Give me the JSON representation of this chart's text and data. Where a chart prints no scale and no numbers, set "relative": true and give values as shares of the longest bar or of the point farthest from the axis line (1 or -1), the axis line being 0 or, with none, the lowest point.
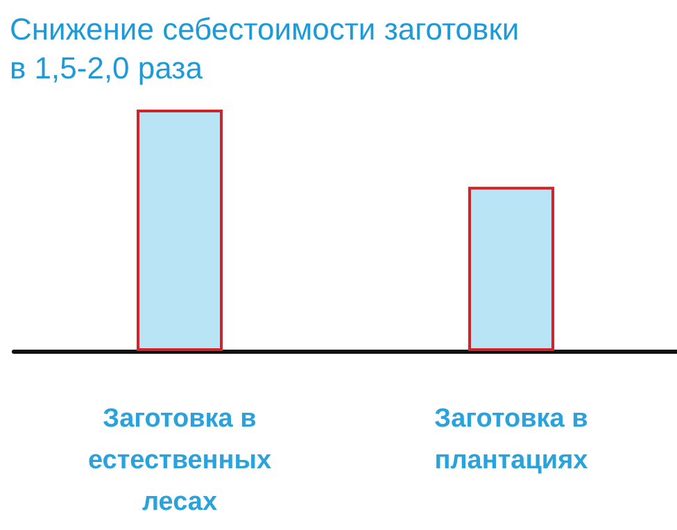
{
  "chart_data": {
    "type": "bar",
    "title": "Снижение себестоимости заготовки в 1,5-2,0 раза",
    "categories": [
      "Заготовка в естественных лесах",
      "Заготовка в плантациях"
    ],
    "values": [
      1,
      0.68
    ],
    "color": "#b8e4f6",
    "relative": true
  }
}
